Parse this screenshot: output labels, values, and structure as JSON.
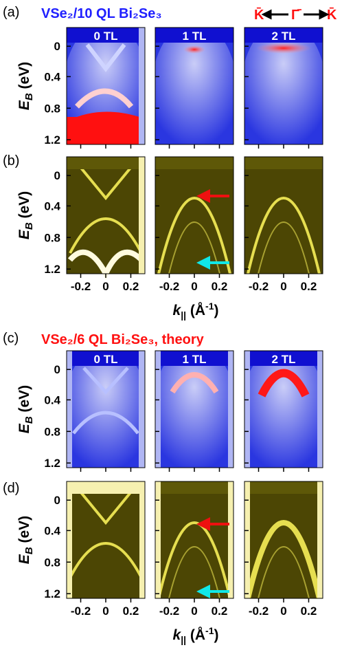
{
  "direction": {
    "left": "K̄",
    "center": "Γ̄",
    "right": "K̄"
  },
  "y_axis": {
    "label": [
      "E",
      "B",
      " (eV)"
    ],
    "ticks": [
      "0",
      "0.4",
      "0.8",
      "1.2"
    ]
  },
  "x_axis": {
    "label": [
      "k",
      "||",
      " (Å",
      "-1",
      ")"
    ],
    "ticks": [
      "-0.2",
      "0",
      "0.2"
    ]
  },
  "rows": [
    {
      "label": "(a)",
      "title": "VSe₂/10 QL Bi₂Se₃",
      "panels": [
        "0 TL",
        "1 TL",
        "2 TL"
      ]
    },
    {
      "label": "(b)"
    },
    {
      "label": "(c)",
      "title": "VSe₂/6 QL Bi₂Se₃, theory",
      "panels": [
        "0 TL",
        "1 TL",
        "2 TL"
      ]
    },
    {
      "label": "(d)"
    }
  ]
}
